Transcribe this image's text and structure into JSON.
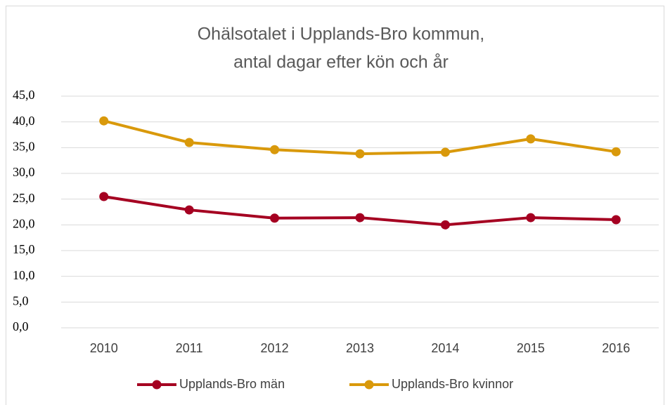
{
  "chart_data": {
    "type": "line",
    "title": [
      "Ohälsotalet i Upplands-Bro kommun,",
      "antal dagar efter kön och år"
    ],
    "categories": [
      "2010",
      "2011",
      "2012",
      "2013",
      "2014",
      "2015",
      "2016"
    ],
    "series": [
      {
        "name": "Upplands-Bro män",
        "color": "#a50021",
        "values": [
          25.5,
          22.9,
          21.3,
          21.4,
          20.0,
          21.4,
          21.0
        ]
      },
      {
        "name": "Upplands-Bro kvinnor",
        "color": "#d9990b",
        "values": [
          40.2,
          36.0,
          34.6,
          33.8,
          34.1,
          36.7,
          34.2
        ]
      }
    ],
    "ylim": [
      0,
      45
    ],
    "yticks": [
      {
        "value": 0,
        "label": "0,0"
      },
      {
        "value": 5,
        "label": "5,0"
      },
      {
        "value": 10,
        "label": "10,0"
      },
      {
        "value": 15,
        "label": "15,0"
      },
      {
        "value": 20,
        "label": "20,0"
      },
      {
        "value": 25,
        "label": "25,0"
      },
      {
        "value": 30,
        "label": "30,0"
      },
      {
        "value": 35,
        "label": "35,0"
      },
      {
        "value": 40,
        "label": "40,0"
      },
      {
        "value": 45,
        "label": "45,0"
      }
    ],
    "grid": true,
    "legend": "bottom"
  }
}
